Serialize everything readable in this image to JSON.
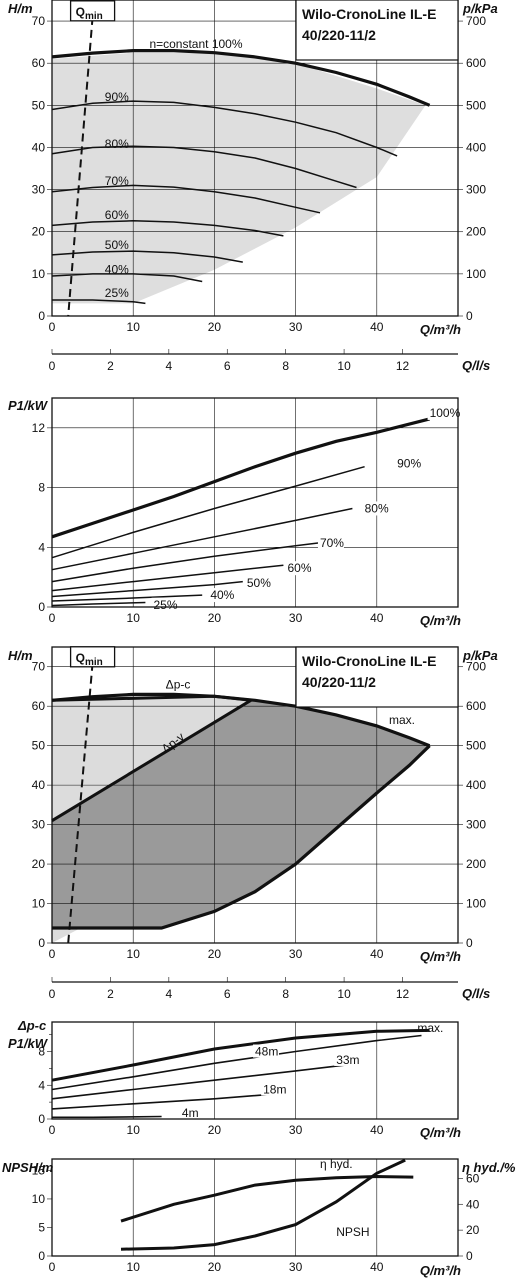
{
  "datasheet": {
    "product_title": [
      "Wilo-CronoLine IL-E",
      "40/220-11/2"
    ],
    "qmin_label": "Q",
    "qmin_sub": "min"
  },
  "chart_data": [
    {
      "id": "hq-speed",
      "type": "line",
      "xlabel": "Q/m³/h",
      "ylabel": "H/m",
      "y2label": "p/kPa",
      "xlim": [
        0,
        50
      ],
      "ylim": [
        0,
        75
      ],
      "xticks": [
        0,
        10,
        20,
        30,
        40
      ],
      "yticks": [
        0,
        10,
        20,
        30,
        40,
        50,
        60,
        70
      ],
      "y2ticks": [
        0,
        100,
        200,
        300,
        400,
        500,
        600,
        700
      ],
      "title": [
        "Wilo-CronoLine IL-E",
        "40/220-11/2"
      ],
      "operating_area": {
        "x": [
          0,
          10,
          20,
          30,
          40,
          46,
          40,
          30,
          20,
          10,
          0
        ],
        "y": [
          61,
          62.5,
          62.5,
          60,
          54,
          50,
          33,
          21,
          11,
          3,
          3
        ]
      },
      "qmin_line": {
        "x": [
          5,
          2
        ],
        "y": [
          71,
          0
        ]
      },
      "series": [
        {
          "name": "n=constant 100%",
          "label_at": [
            12,
            64.5
          ],
          "x": [
            0,
            5,
            10,
            15,
            20,
            25,
            30,
            35,
            40,
            44,
            46.5
          ],
          "y": [
            61.5,
            62.4,
            63,
            63,
            62.5,
            61.5,
            60,
            57.8,
            55,
            52,
            50
          ]
        },
        {
          "name": "90%",
          "label_at": [
            6.5,
            52
          ],
          "x": [
            0,
            5,
            10,
            15,
            20,
            25,
            30,
            35,
            40,
            42.5
          ],
          "y": [
            49,
            50.5,
            51,
            50.7,
            49.5,
            48,
            46,
            43.5,
            40,
            38
          ]
        },
        {
          "name": "80%",
          "label_at": [
            6.5,
            40.8
          ],
          "x": [
            0,
            5,
            10,
            15,
            20,
            25,
            30,
            35,
            37.5
          ],
          "y": [
            38.5,
            40,
            40.3,
            40,
            39,
            37.5,
            35,
            32,
            30.5
          ]
        },
        {
          "name": "70%",
          "label_at": [
            6.5,
            32
          ],
          "x": [
            0,
            5,
            10,
            15,
            20,
            25,
            30,
            33
          ],
          "y": [
            29.5,
            30.5,
            31,
            30.6,
            29.5,
            28,
            25.8,
            24.5
          ]
        },
        {
          "name": "60%",
          "label_at": [
            6.5,
            24
          ],
          "x": [
            0,
            5,
            10,
            15,
            20,
            25,
            28.5
          ],
          "y": [
            21.5,
            22.3,
            22.6,
            22.3,
            21.5,
            20.3,
            19
          ]
        },
        {
          "name": "50%",
          "label_at": [
            6.5,
            16.8
          ],
          "x": [
            0,
            5,
            10,
            15,
            20,
            23.5
          ],
          "y": [
            14.5,
            15.2,
            15.4,
            15,
            14,
            12.8
          ]
        },
        {
          "name": "40%",
          "label_at": [
            6.5,
            11
          ],
          "x": [
            0,
            5,
            10,
            15,
            18.5
          ],
          "y": [
            9.5,
            10,
            10,
            9.5,
            8.2
          ]
        },
        {
          "name": "25%",
          "label_at": [
            6.5,
            5.5
          ],
          "x": [
            0,
            5,
            10,
            11.5
          ],
          "y": [
            3.8,
            3.8,
            3.4,
            3
          ]
        }
      ],
      "secondary_axis": {
        "label": "Q/l/s",
        "ticks": [
          0,
          2,
          4,
          6,
          8,
          10,
          12
        ],
        "max_value": 13.9
      }
    },
    {
      "id": "p1-speed",
      "type": "line",
      "xlabel": "Q/m³/h",
      "ylabel": "P1/kW",
      "xlim": [
        0,
        50
      ],
      "ylim": [
        0,
        14
      ],
      "xticks": [
        0,
        10,
        20,
        30,
        40
      ],
      "yticks": [
        0,
        4,
        8,
        12
      ],
      "series": [
        {
          "name": "100%",
          "label_at": [
            46.5,
            13
          ],
          "x": [
            0,
            5,
            10,
            15,
            20,
            25,
            30,
            35,
            40,
            46.5
          ],
          "y": [
            4.7,
            5.6,
            6.5,
            7.4,
            8.4,
            9.4,
            10.3,
            11.1,
            11.7,
            12.6
          ]
        },
        {
          "name": "90%",
          "label_at": [
            42.5,
            9.6
          ],
          "x": [
            0,
            10,
            20,
            30,
            38.5
          ],
          "y": [
            3.3,
            5,
            6.6,
            8.1,
            9.4
          ]
        },
        {
          "name": "80%",
          "label_at": [
            38.5,
            6.6
          ],
          "x": [
            0,
            10,
            20,
            30,
            37
          ],
          "y": [
            2.5,
            3.6,
            4.7,
            5.8,
            6.6
          ]
        },
        {
          "name": "70%",
          "label_at": [
            33,
            4.3
          ],
          "x": [
            0,
            10,
            20,
            30,
            33
          ],
          "y": [
            1.7,
            2.6,
            3.4,
            4.1,
            4.3
          ]
        },
        {
          "name": "60%",
          "label_at": [
            29,
            2.6
          ],
          "x": [
            0,
            10,
            20,
            28.5
          ],
          "y": [
            1.1,
            1.7,
            2.3,
            2.8
          ]
        },
        {
          "name": "50%",
          "label_at": [
            24,
            1.6
          ],
          "x": [
            0,
            10,
            20,
            23.5
          ],
          "y": [
            0.7,
            1.1,
            1.5,
            1.7
          ]
        },
        {
          "name": "40%",
          "label_at": [
            19.5,
            0.8
          ],
          "x": [
            0,
            10,
            18.5
          ],
          "y": [
            0.4,
            0.6,
            0.8
          ]
        },
        {
          "name": "25%",
          "label_at": [
            12.5,
            0.15
          ],
          "x": [
            0,
            5,
            11.5
          ],
          "y": [
            0.1,
            0.2,
            0.3
          ]
        }
      ]
    },
    {
      "id": "hq-control",
      "type": "area",
      "xlabel": "Q/m³/h",
      "ylabel": "H/m",
      "y2label": "p/kPa",
      "xlim": [
        0,
        50
      ],
      "ylim": [
        0,
        75
      ],
      "xticks": [
        0,
        10,
        20,
        30,
        40
      ],
      "yticks": [
        0,
        10,
        20,
        30,
        40,
        50,
        60,
        70
      ],
      "y2ticks": [
        0,
        100,
        200,
        300,
        400,
        500,
        600,
        700
      ],
      "title": [
        "Wilo-CronoLine IL-E",
        "40/220-11/2"
      ],
      "labels": {
        "dp_c": "Δp-c",
        "dp_v": "Δp-v",
        "max": "max."
      },
      "max_curve": {
        "x": [
          0,
          5,
          10,
          15,
          20,
          25,
          30,
          35,
          40,
          44,
          46.5
        ],
        "y": [
          61.5,
          62.4,
          63,
          63,
          62.5,
          61.5,
          60,
          57.8,
          55,
          52,
          50
        ]
      },
      "dp_c_line": {
        "x": [
          0,
          20,
          24.5
        ],
        "y": [
          61.5,
          62.5,
          61.5
        ]
      },
      "dp_v_line": {
        "x": [
          0,
          24.5
        ],
        "y": [
          31,
          61.5
        ]
      },
      "lower_boundary": {
        "x": [
          0,
          13.5,
          20,
          25,
          30,
          35,
          40,
          44,
          46.5
        ],
        "y": [
          3.8,
          3.8,
          8,
          13,
          20,
          29,
          38,
          45,
          50
        ]
      },
      "qmin_line": {
        "x": [
          5,
          2
        ],
        "y": [
          71,
          0
        ]
      },
      "secondary_axis": {
        "label": "Q/l/s",
        "ticks": [
          0,
          2,
          4,
          6,
          8,
          10,
          12
        ],
        "max_value": 13.9
      }
    },
    {
      "id": "p1-control",
      "type": "line",
      "xlabel": "Q/m³/h",
      "ylabel": "P1/kW",
      "ylabel_top": "Δp-c",
      "xlim": [
        0,
        50
      ],
      "ylim": [
        0,
        11.5
      ],
      "xticks": [
        0,
        10,
        20,
        30,
        40
      ],
      "yticks": [
        0,
        4,
        8
      ],
      "yticks_minor": [
        2,
        6,
        10
      ],
      "series": [
        {
          "name": "max.",
          "label_at": [
            45,
            10.8
          ],
          "x": [
            0,
            10,
            20,
            30,
            40,
            46.5
          ],
          "y": [
            4.6,
            6.4,
            8.3,
            9.6,
            10.4,
            10.5
          ]
        },
        {
          "name": "48m",
          "label_at": [
            25,
            8
          ],
          "x": [
            0,
            10,
            20,
            30,
            40,
            45.5
          ],
          "y": [
            3.5,
            5,
            6.6,
            8,
            9.3,
            9.9
          ]
        },
        {
          "name": "33m",
          "label_at": [
            35,
            7
          ],
          "x": [
            0,
            10,
            20,
            30,
            37
          ],
          "y": [
            2.4,
            3.5,
            4.6,
            5.7,
            6.5
          ]
        },
        {
          "name": "18m",
          "label_at": [
            26,
            3.5
          ],
          "x": [
            0,
            10,
            20,
            28
          ],
          "y": [
            1.2,
            1.8,
            2.4,
            3
          ]
        },
        {
          "name": "4m",
          "label_at": [
            16,
            0.7
          ],
          "x": [
            0,
            5,
            13.5
          ],
          "y": [
            0.2,
            0.2,
            0.3
          ]
        }
      ]
    },
    {
      "id": "npsh-eta",
      "type": "line",
      "xlabel": "Q/m³/h",
      "ylabel": "NPSH/m",
      "y2label": "η hyd./%",
      "xlim": [
        0,
        50
      ],
      "ylim": [
        0,
        17
      ],
      "xticks": [
        0,
        10,
        20,
        30,
        40
      ],
      "yticks": [
        0,
        5,
        10,
        15
      ],
      "y2ticks": [
        0,
        20,
        40,
        60
      ],
      "series": [
        {
          "name": "η hyd.",
          "axis": "right",
          "label_at": [
            33,
            71
          ],
          "x": [
            8.5,
            15,
            20,
            25,
            30,
            35,
            40,
            44.5
          ],
          "y": [
            27,
            40,
            47,
            54.8,
            58.5,
            60.5,
            61.5,
            61
          ]
        },
        {
          "name": "NPSH",
          "axis": "left",
          "label_at": [
            35,
            4.2
          ],
          "x": [
            8.5,
            15,
            20,
            25,
            30,
            35,
            40,
            43.5
          ],
          "y": [
            1.2,
            1.4,
            2,
            3.5,
            5.5,
            9.5,
            14.5,
            16.8
          ]
        }
      ]
    }
  ]
}
